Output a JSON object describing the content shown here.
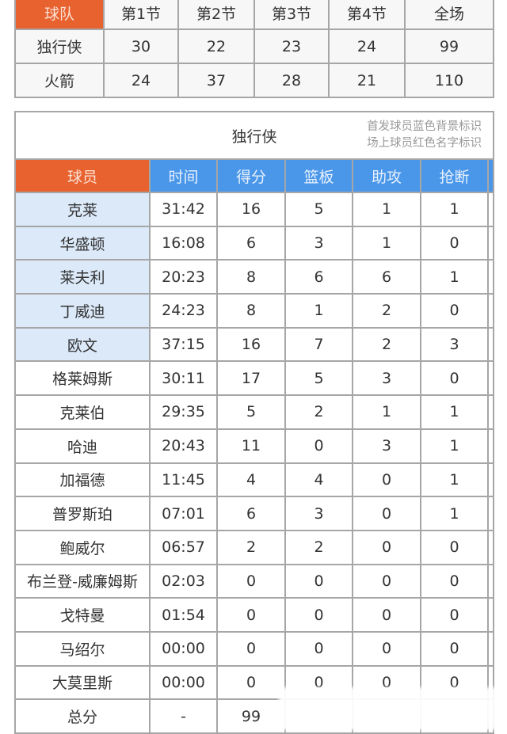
{
  "scoreboard": {
    "headers": [
      "球队",
      "第1节",
      "第2节",
      "第3节",
      "第4节",
      "全场"
    ],
    "rows": [
      [
        "独行侠",
        "30",
        "22",
        "23",
        "24",
        "99"
      ],
      [
        "火箭",
        "24",
        "37",
        "28",
        "21",
        "110"
      ]
    ]
  },
  "boxscore": {
    "team": "独行侠",
    "legend": [
      "首发球员蓝色背景标识",
      "场上球员红色名字标识"
    ],
    "headers": [
      "球员",
      "时间",
      "得分",
      "篮板",
      "助攻",
      "抢断"
    ],
    "rows": [
      {
        "starter": true,
        "cells": [
          "克莱",
          "31:42",
          "16",
          "5",
          "1",
          "1"
        ]
      },
      {
        "starter": true,
        "cells": [
          "华盛顿",
          "16:08",
          "6",
          "3",
          "1",
          "0"
        ]
      },
      {
        "starter": true,
        "cells": [
          "莱夫利",
          "20:23",
          "8",
          "6",
          "6",
          "1"
        ]
      },
      {
        "starter": true,
        "cells": [
          "丁威迪",
          "24:23",
          "8",
          "1",
          "2",
          "0"
        ]
      },
      {
        "starter": true,
        "cells": [
          "欧文",
          "37:15",
          "16",
          "7",
          "2",
          "3"
        ]
      },
      {
        "starter": false,
        "cells": [
          "格莱姆斯",
          "30:11",
          "17",
          "5",
          "3",
          "0"
        ]
      },
      {
        "starter": false,
        "cells": [
          "克莱伯",
          "29:35",
          "5",
          "2",
          "1",
          "1"
        ]
      },
      {
        "starter": false,
        "cells": [
          "哈迪",
          "20:43",
          "11",
          "0",
          "3",
          "1"
        ]
      },
      {
        "starter": false,
        "cells": [
          "加福德",
          "11:45",
          "4",
          "4",
          "0",
          "1"
        ]
      },
      {
        "starter": false,
        "cells": [
          "普罗斯珀",
          "07:01",
          "6",
          "3",
          "0",
          "1"
        ]
      },
      {
        "starter": false,
        "cells": [
          "鲍威尔",
          "06:57",
          "2",
          "2",
          "0",
          "0"
        ]
      },
      {
        "starter": false,
        "cells": [
          "布兰登-威廉姆斯",
          "02:03",
          "0",
          "0",
          "0",
          "0"
        ]
      },
      {
        "starter": false,
        "cells": [
          "戈特曼",
          "01:54",
          "0",
          "0",
          "0",
          "0"
        ]
      },
      {
        "starter": false,
        "cells": [
          "马绍尔",
          "00:00",
          "0",
          "0",
          "0",
          "0"
        ]
      },
      {
        "starter": false,
        "cells": [
          "大莫里斯",
          "00:00",
          "0",
          "0",
          "0",
          "0"
        ]
      },
      {
        "starter": false,
        "cells": [
          "总分",
          "-",
          "99",
          "",
          "",
          ""
        ]
      }
    ]
  },
  "colors": {
    "header_orange": "#e8622f",
    "header_blue": "#4a97ea",
    "starter_bg": "#dbe9f9"
  }
}
